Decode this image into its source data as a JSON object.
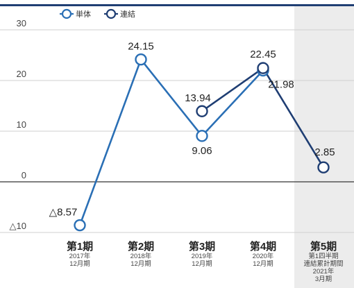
{
  "chart_data": {
    "type": "line",
    "title": "",
    "xlabel": "",
    "ylabel": "",
    "ylim": [
      -10,
      30
    ],
    "yticks": [
      {
        "value": 30,
        "label": "30"
      },
      {
        "value": 20,
        "label": "20"
      },
      {
        "value": 10,
        "label": "10"
      },
      {
        "value": 0,
        "label": "0"
      },
      {
        "value": -10,
        "label": "△10"
      }
    ],
    "grid": true,
    "legend_position": "top-left",
    "categories": [
      {
        "main": "第1期",
        "sub": [
          "2017年",
          "12月期"
        ]
      },
      {
        "main": "第2期",
        "sub": [
          "2018年",
          "12月期"
        ]
      },
      {
        "main": "第3期",
        "sub": [
          "2019年",
          "12月期"
        ]
      },
      {
        "main": "第4期",
        "sub": [
          "2020年",
          "12月期"
        ]
      },
      {
        "main": "第5期",
        "sub": [
          "第1四半期",
          "連結累計期間",
          "2021年",
          "3月期"
        ]
      }
    ],
    "series": [
      {
        "name": "単体",
        "color": "#2a6fb5",
        "values": [
          -8.57,
          24.15,
          9.06,
          21.98,
          null
        ],
        "labels": [
          "△8.57",
          "24.15",
          "9.06",
          "21.98",
          null
        ]
      },
      {
        "name": "連結",
        "color": "#1f3e73",
        "values": [
          null,
          null,
          13.94,
          22.45,
          2.85
        ],
        "labels": [
          null,
          null,
          "13.94",
          "22.45",
          "2.85"
        ]
      }
    ]
  }
}
